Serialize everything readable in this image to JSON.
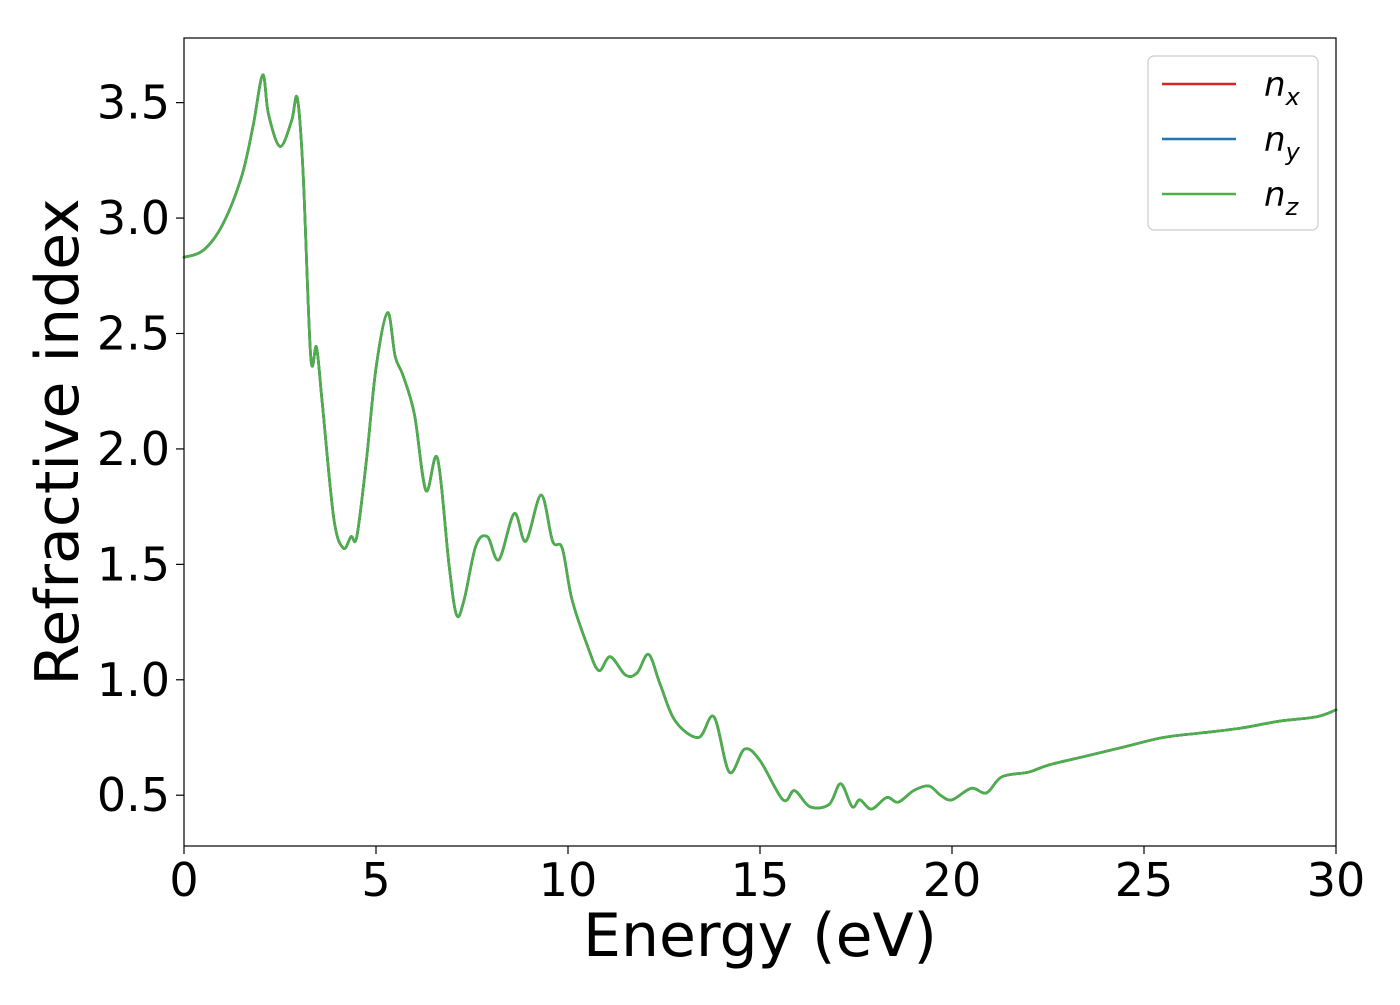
{
  "chart_data": {
    "type": "line",
    "title": "",
    "xlabel": "Energy (eV)",
    "ylabel": "Refractive index",
    "xlim": [
      0,
      30
    ],
    "ylim": [
      0.28,
      3.78
    ],
    "xticks": [
      0,
      5,
      10,
      15,
      20,
      25,
      30
    ],
    "xtick_labels": [
      "0",
      "5",
      "10",
      "15",
      "20",
      "25",
      "30"
    ],
    "yticks": [
      0.5,
      1.0,
      1.5,
      2.0,
      2.5,
      3.0,
      3.5
    ],
    "ytick_labels": [
      "0.5",
      "1.0",
      "1.5",
      "2.0",
      "2.5",
      "3.0",
      "3.5"
    ],
    "grid": false,
    "legend_position": "top-right",
    "shared_x": [
      0,
      0.5,
      1.0,
      1.5,
      1.8,
      2.05,
      2.2,
      2.5,
      2.8,
      2.95,
      3.1,
      3.3,
      3.45,
      3.6,
      3.9,
      4.15,
      4.35,
      4.5,
      4.75,
      5.0,
      5.3,
      5.5,
      5.7,
      6.0,
      6.3,
      6.6,
      6.9,
      7.1,
      7.3,
      7.6,
      7.9,
      8.2,
      8.6,
      8.9,
      9.3,
      9.6,
      9.85,
      10.1,
      10.5,
      10.8,
      11.1,
      11.5,
      11.8,
      12.1,
      12.4,
      12.8,
      13.4,
      13.8,
      14.2,
      14.6,
      15.0,
      15.6,
      15.9,
      16.3,
      16.8,
      17.1,
      17.4,
      17.6,
      17.9,
      18.3,
      18.6,
      19.0,
      19.4,
      19.7,
      20.0,
      20.5,
      20.9,
      21.3,
      22.0,
      22.5,
      23.5,
      24.5,
      25.5,
      26.5,
      27.5,
      28.5,
      29.5,
      30.0
    ],
    "shared_y": [
      2.83,
      2.86,
      2.97,
      3.18,
      3.4,
      3.62,
      3.45,
      3.31,
      3.42,
      3.52,
      3.2,
      2.4,
      2.44,
      2.2,
      1.7,
      1.57,
      1.62,
      1.62,
      1.95,
      2.35,
      2.59,
      2.4,
      2.32,
      2.15,
      1.82,
      1.96,
      1.5,
      1.28,
      1.35,
      1.58,
      1.62,
      1.52,
      1.72,
      1.6,
      1.8,
      1.6,
      1.57,
      1.35,
      1.15,
      1.04,
      1.1,
      1.02,
      1.03,
      1.11,
      0.98,
      0.82,
      0.75,
      0.84,
      0.6,
      0.7,
      0.65,
      0.48,
      0.52,
      0.45,
      0.46,
      0.55,
      0.45,
      0.48,
      0.44,
      0.49,
      0.47,
      0.52,
      0.54,
      0.5,
      0.48,
      0.53,
      0.51,
      0.58,
      0.6,
      0.63,
      0.67,
      0.71,
      0.75,
      0.77,
      0.79,
      0.82,
      0.84,
      0.87
    ],
    "series": [
      {
        "name": "n_x",
        "label_main": "n",
        "label_sub": "x",
        "color": "#d62728",
        "values_ref": "shared_y"
      },
      {
        "name": "n_y",
        "label_main": "n",
        "label_sub": "y",
        "color": "#1f77b4",
        "values_ref": "shared_y"
      },
      {
        "name": "n_z",
        "label_main": "n",
        "label_sub": "z",
        "color": "#4daf4a",
        "values_ref": "shared_y"
      }
    ]
  }
}
